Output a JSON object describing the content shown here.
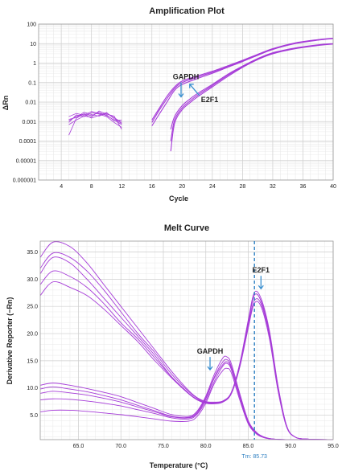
{
  "chart_data": [
    {
      "type": "line",
      "title": "Amplification Plot",
      "xlabel": "Cycle",
      "ylabel": "ΔRn",
      "xlim": [
        1,
        40
      ],
      "ylim": [
        1e-06,
        100
      ],
      "y_scale": "log",
      "grid": true,
      "x_ticks": [
        4,
        8,
        12,
        16,
        20,
        24,
        28,
        32,
        36,
        40
      ],
      "x_tick_labels": [
        "4",
        "8",
        "12",
        "16",
        "20",
        "24",
        "28",
        "32",
        "36",
        "40"
      ],
      "y_ticks": [
        1e-06,
        1e-05,
        0.0001,
        0.001,
        0.01,
        0.1,
        1,
        10,
        100
      ],
      "y_tick_labels": [
        "0.000001",
        "0.00001",
        "0.0001",
        "0.001",
        "0.01",
        "0.1",
        "1",
        "10",
        "100"
      ],
      "annotations": [
        {
          "text": "GAPDH",
          "x": 20.5,
          "y": 0.15
        },
        {
          "text": "E2F1",
          "x": 22.5,
          "y": 0.018
        }
      ],
      "series": [
        {
          "group": "noise",
          "x": [
            5,
            6,
            7,
            8,
            9,
            10,
            11,
            12
          ],
          "y": [
            0.0002,
            0.0015,
            0.0025,
            0.002,
            0.003,
            0.002,
            0.0012,
            0.0007
          ]
        },
        {
          "group": "noise",
          "x": [
            5,
            6,
            7,
            8,
            9,
            10,
            11,
            12
          ],
          "y": [
            0.0009,
            0.0022,
            0.0018,
            0.0028,
            0.0024,
            0.0018,
            0.0009,
            0.0005
          ]
        },
        {
          "group": "noise",
          "x": [
            5,
            6,
            7,
            8,
            9,
            10,
            11,
            12
          ],
          "y": [
            0.0013,
            0.0016,
            0.003,
            0.0023,
            0.0019,
            0.0027,
            0.0016,
            0.0009
          ]
        },
        {
          "group": "noise",
          "x": [
            5,
            6,
            7,
            8,
            9,
            10,
            11,
            12
          ],
          "y": [
            0.0018,
            0.0026,
            0.0021,
            0.0033,
            0.0026,
            0.0022,
            0.0011,
            0.0012
          ]
        },
        {
          "group": "noise",
          "x": [
            5,
            6,
            7,
            8,
            9,
            10,
            11,
            12
          ],
          "y": [
            0.0007,
            0.0012,
            0.0019,
            0.0017,
            0.0035,
            0.0024,
            0.0019,
            0.0004
          ]
        },
        {
          "group": "noise",
          "x": [
            5,
            6,
            7,
            8,
            9,
            10,
            11,
            12
          ],
          "y": [
            0.0011,
            0.0019,
            0.0024,
            0.0015,
            0.0021,
            0.0029,
            0.0014,
            0.0008
          ]
        },
        {
          "group": "GAPDH",
          "x": [
            16,
            17,
            18,
            19,
            20,
            22,
            24,
            26,
            28,
            30,
            32,
            35,
            38,
            40
          ],
          "y": [
            0.0006,
            0.0025,
            0.01,
            0.04,
            0.08,
            0.16,
            0.3,
            0.6,
            1.2,
            2.5,
            5,
            10,
            15,
            18
          ]
        },
        {
          "group": "GAPDH",
          "x": [
            16,
            17,
            18,
            19,
            20,
            22,
            24,
            26,
            28,
            30,
            32,
            35,
            38,
            40
          ],
          "y": [
            0.0009,
            0.004,
            0.015,
            0.05,
            0.1,
            0.19,
            0.34,
            0.65,
            1.3,
            2.6,
            5.2,
            10.5,
            15.5,
            18.5
          ]
        },
        {
          "group": "GAPDH",
          "x": [
            16,
            17,
            18,
            19,
            20,
            22,
            24,
            26,
            28,
            30,
            32,
            35,
            38,
            40
          ],
          "y": [
            0.0012,
            0.005,
            0.02,
            0.06,
            0.12,
            0.22,
            0.38,
            0.72,
            1.4,
            2.8,
            5.5,
            11,
            16,
            19
          ]
        },
        {
          "group": "E2F1",
          "x": [
            18.5,
            19,
            20,
            21,
            22,
            24,
            26,
            28,
            30,
            32,
            35,
            38,
            40
          ],
          "y": [
            3e-05,
            0.0008,
            0.004,
            0.009,
            0.018,
            0.06,
            0.2,
            0.6,
            1.5,
            3,
            5.5,
            8,
            9.5
          ]
        },
        {
          "group": "E2F1",
          "x": [
            18.5,
            19,
            20,
            21,
            22,
            24,
            26,
            28,
            30,
            32,
            35,
            38,
            40
          ],
          "y": [
            0.0001,
            0.0012,
            0.005,
            0.011,
            0.022,
            0.07,
            0.23,
            0.65,
            1.6,
            3.2,
            5.8,
            8.3,
            9.8
          ]
        },
        {
          "group": "E2F1",
          "x": [
            18.5,
            19,
            20,
            21,
            22,
            24,
            26,
            28,
            30,
            32,
            35,
            38,
            40
          ],
          "y": [
            0.0004,
            0.0018,
            0.0065,
            0.014,
            0.027,
            0.08,
            0.26,
            0.7,
            1.7,
            3.4,
            6,
            8.6,
            10
          ]
        }
      ]
    },
    {
      "type": "line",
      "title": "Melt Curve",
      "xlabel": "Temperature (°C)",
      "ylabel": "Derivative Reporter (−Rn)",
      "xlim": [
        60.5,
        95
      ],
      "ylim": [
        0.5,
        37
      ],
      "grid": true,
      "x_ticks": [
        65,
        70,
        75,
        80,
        85,
        90,
        95
      ],
      "x_tick_labels": [
        "65.0",
        "70.0",
        "75.0",
        "80.0",
        "85.0",
        "90.0",
        "95.0"
      ],
      "y_ticks": [
        5,
        10,
        15,
        20,
        25,
        30,
        35
      ],
      "y_tick_labels": [
        "5.0",
        "10.0",
        "15.0",
        "20.0",
        "25.0",
        "30.0",
        "35.0"
      ],
      "annotations": [
        {
          "text": "GAPDH",
          "x": 80.5,
          "y": 16.3
        },
        {
          "text": "E2F1",
          "x": 86.5,
          "y": 31.2
        },
        {
          "text": "Tm: 85.73",
          "x": 85.73,
          "y": -1.1
        }
      ],
      "tm_line": 85.73,
      "series": [
        {
          "group": "E2F1",
          "x": [
            60.5,
            62,
            64,
            66,
            68,
            70,
            72,
            74,
            76,
            78,
            79,
            80,
            81,
            82,
            83,
            84,
            85,
            85.7,
            86.5,
            87.5,
            88.5,
            89.5,
            90.5,
            92,
            95
          ],
          "y": [
            34,
            36.8,
            36,
            33,
            29,
            25,
            21,
            17,
            13,
            9.5,
            8.2,
            7.5,
            7.4,
            7.6,
            9,
            14,
            22,
            27,
            26,
            20,
            10,
            3,
            1,
            0.6,
            0.5
          ]
        },
        {
          "group": "E2F1",
          "x": [
            60.5,
            62,
            64,
            66,
            68,
            70,
            72,
            74,
            76,
            78,
            79,
            80,
            81,
            82,
            83,
            84,
            85,
            85.7,
            86.5,
            87.5,
            88.5,
            89.5,
            90.5,
            92,
            95
          ],
          "y": [
            32,
            34.8,
            34,
            31.5,
            28,
            24,
            20,
            16.5,
            12.5,
            9.3,
            8.1,
            7.4,
            7.3,
            7.6,
            9.2,
            14.5,
            22.5,
            27.5,
            26.5,
            20.5,
            10.5,
            3.2,
            1,
            0.6,
            0.5
          ]
        },
        {
          "group": "E2F1",
          "x": [
            60.5,
            62,
            64,
            66,
            68,
            70,
            72,
            74,
            76,
            78,
            79,
            80,
            81,
            82,
            83,
            84,
            85,
            85.7,
            86.5,
            87.5,
            88.5,
            89.5,
            90.5,
            92,
            95
          ],
          "y": [
            31,
            34,
            33,
            30,
            26.5,
            23,
            19.5,
            16,
            12,
            9,
            7.9,
            7.3,
            7.2,
            7.5,
            9.1,
            14.2,
            22,
            27,
            26,
            20,
            10.2,
            3.1,
            1,
            0.6,
            0.5
          ]
        },
        {
          "group": "E2F1",
          "x": [
            60.5,
            62,
            64,
            66,
            68,
            70,
            72,
            74,
            76,
            78,
            79,
            80,
            81,
            82,
            83,
            84,
            85,
            85.7,
            86.5,
            87.5,
            88.5,
            89.5,
            90.5,
            92,
            95
          ],
          "y": [
            29,
            31.5,
            30.5,
            28.5,
            25.5,
            22,
            19,
            15.5,
            12,
            9,
            7.8,
            7.2,
            7.1,
            7.5,
            9,
            14,
            21.5,
            26,
            25.5,
            19.5,
            9.8,
            3,
            1,
            0.6,
            0.5
          ]
        },
        {
          "group": "E2F1",
          "x": [
            60.5,
            62,
            64,
            66,
            68,
            70,
            72,
            74,
            76,
            78,
            79,
            80,
            81,
            82,
            83,
            84,
            85,
            85.7,
            86.5,
            87.5,
            88.5,
            89.5,
            90.5,
            92,
            95
          ],
          "y": [
            27,
            29.5,
            28.5,
            27,
            24.5,
            21.5,
            18.5,
            15,
            11.8,
            8.9,
            7.8,
            7.2,
            7.1,
            7.4,
            8.9,
            13.8,
            21,
            25.5,
            25,
            19,
            9.5,
            2.9,
            1,
            0.6,
            0.5
          ]
        },
        {
          "group": "GAPDH",
          "x": [
            60.5,
            62,
            64,
            66,
            68,
            70,
            72,
            74,
            76,
            78,
            79,
            80,
            81,
            82,
            82.5,
            83,
            84,
            85,
            86,
            87,
            88,
            90,
            95
          ],
          "y": [
            10.5,
            10.9,
            10.5,
            9.9,
            9.2,
            8.4,
            7.3,
            6.2,
            5.1,
            4.8,
            5.8,
            8.5,
            12.5,
            15.5,
            15.7,
            14.5,
            9,
            4,
            1.8,
            0.9,
            0.6,
            0.5,
            0.5
          ]
        },
        {
          "group": "GAPDH",
          "x": [
            60.5,
            62,
            64,
            66,
            68,
            70,
            72,
            74,
            76,
            78,
            79,
            80,
            81,
            82,
            82.5,
            83,
            84,
            85,
            86,
            87,
            88,
            90,
            95
          ],
          "y": [
            9.8,
            10.2,
            9.8,
            9.3,
            8.6,
            7.8,
            6.8,
            5.8,
            4.8,
            4.6,
            5.6,
            8.2,
            12,
            14.8,
            15.2,
            14,
            8.6,
            3.8,
            1.7,
            0.9,
            0.6,
            0.5,
            0.5
          ]
        },
        {
          "group": "GAPDH",
          "x": [
            60.5,
            62,
            64,
            66,
            68,
            70,
            72,
            74,
            76,
            78,
            79,
            80,
            81,
            82,
            82.5,
            83,
            84,
            85,
            86,
            87,
            88,
            90,
            95
          ],
          "y": [
            7.8,
            8.0,
            7.9,
            7.6,
            7.2,
            6.7,
            6.0,
            5.3,
            4.5,
            4.3,
            5.2,
            7.6,
            11.2,
            14,
            14.5,
            13.4,
            8.2,
            3.6,
            1.6,
            0.8,
            0.6,
            0.5,
            0.5
          ]
        },
        {
          "group": "GAPDH",
          "x": [
            60.5,
            62,
            64,
            66,
            68,
            70,
            72,
            74,
            76,
            78,
            79,
            80,
            81,
            82,
            82.5,
            83,
            84,
            85,
            86,
            87,
            88,
            90,
            95
          ],
          "y": [
            5.6,
            5.9,
            5.9,
            5.7,
            5.4,
            5.1,
            4.7,
            4.3,
            3.9,
            3.9,
            4.8,
            7.2,
            10.8,
            13.2,
            13.6,
            12.8,
            7.8,
            3.4,
            1.5,
            0.8,
            0.6,
            0.5,
            0.5
          ]
        },
        {
          "group": "GAPDH",
          "x": [
            60.5,
            62,
            64,
            66,
            68,
            70,
            72,
            74,
            76,
            78,
            79,
            80,
            81,
            82,
            82.5,
            83,
            84,
            85,
            86,
            87,
            88,
            90,
            95
          ],
          "y": [
            9.0,
            9.4,
            9.1,
            8.7,
            8.1,
            7.4,
            6.5,
            5.6,
            4.7,
            4.5,
            5.4,
            8,
            11.8,
            14.3,
            14.8,
            13.7,
            8.4,
            3.7,
            1.6,
            0.9,
            0.6,
            0.5,
            0.5
          ]
        }
      ]
    }
  ],
  "colors": {
    "curve": "#a63cd8",
    "tm_line": "#2d7fc1",
    "arrow": "#3a8fcf",
    "grid": "#cfcfcf",
    "grid_minor": "#e6e6e6"
  }
}
